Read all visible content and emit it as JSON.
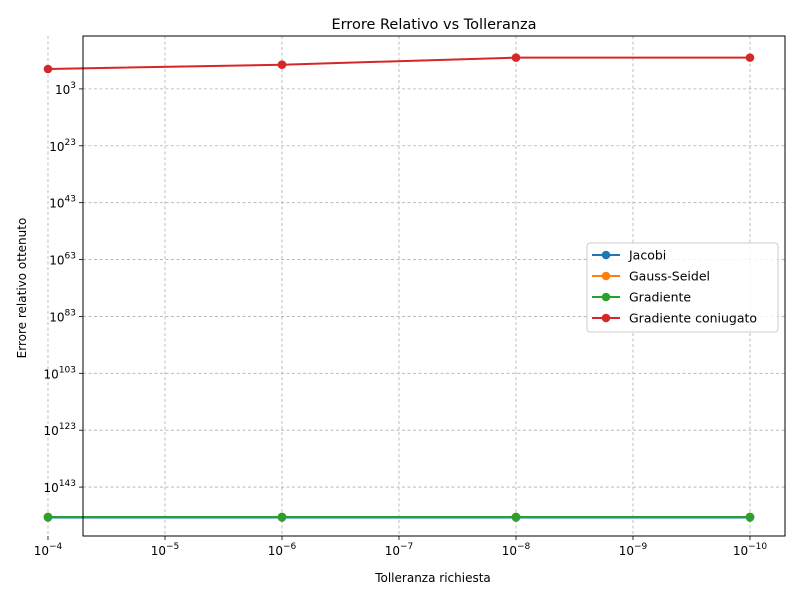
{
  "chart_data": {
    "type": "line",
    "title": "Errore Relativo vs Tolleranza",
    "xlabel": "Tolleranza richiesta",
    "ylabel": "Errore relativo ottenuto",
    "x_scale": "log",
    "x_reversed": true,
    "y_scale": "log",
    "y_inverted": true,
    "x": [
      0.0001,
      1e-06,
      1e-08,
      1e-10
    ],
    "xticks": [
      {
        "value": 0.0001,
        "base": "10",
        "exp": "−4"
      },
      {
        "value": 1e-05,
        "base": "10",
        "exp": "−5"
      },
      {
        "value": 1e-06,
        "base": "10",
        "exp": "−6"
      },
      {
        "value": 1e-07,
        "base": "10",
        "exp": "−7"
      },
      {
        "value": 1e-08,
        "base": "10",
        "exp": "−8"
      },
      {
        "value": 1e-09,
        "base": "10",
        "exp": "−9"
      },
      {
        "value": 1e-10,
        "base": "10",
        "exp": "−10"
      }
    ],
    "yticks": [
      {
        "exp_value": 3,
        "base": "10",
        "exp": "3"
      },
      {
        "exp_value": 23,
        "base": "10",
        "exp": "23"
      },
      {
        "exp_value": 43,
        "base": "10",
        "exp": "43"
      },
      {
        "exp_value": 63,
        "base": "10",
        "exp": "63"
      },
      {
        "exp_value": 83,
        "base": "10",
        "exp": "83"
      },
      {
        "exp_value": 103,
        "base": "10",
        "exp": "103"
      },
      {
        "exp_value": 123,
        "base": "10",
        "exp": "123"
      },
      {
        "exp_value": 143,
        "base": "10",
        "exp": "143"
      }
    ],
    "ylim_exponent": [
      -15.6,
      160.2
    ],
    "y_values_as_log10": true,
    "series": [
      {
        "name": "Jacobi",
        "color": "#1f77b4",
        "log10_values": [
          153.7,
          153.7,
          153.7,
          153.7
        ]
      },
      {
        "name": "Gauss-Seidel",
        "color": "#ff7f0e",
        "log10_values": [
          153.5,
          153.5,
          153.5,
          153.5
        ]
      },
      {
        "name": "Gradiente",
        "color": "#2ca02c",
        "log10_values": [
          153.5,
          153.5,
          153.5,
          153.5
        ]
      },
      {
        "name": "Gradiente coniugato",
        "color": "#d62728",
        "log10_values": [
          -4.0,
          -5.5,
          -8.0,
          -8.0
        ]
      }
    ],
    "grid": true,
    "legend_position": "center-right"
  }
}
